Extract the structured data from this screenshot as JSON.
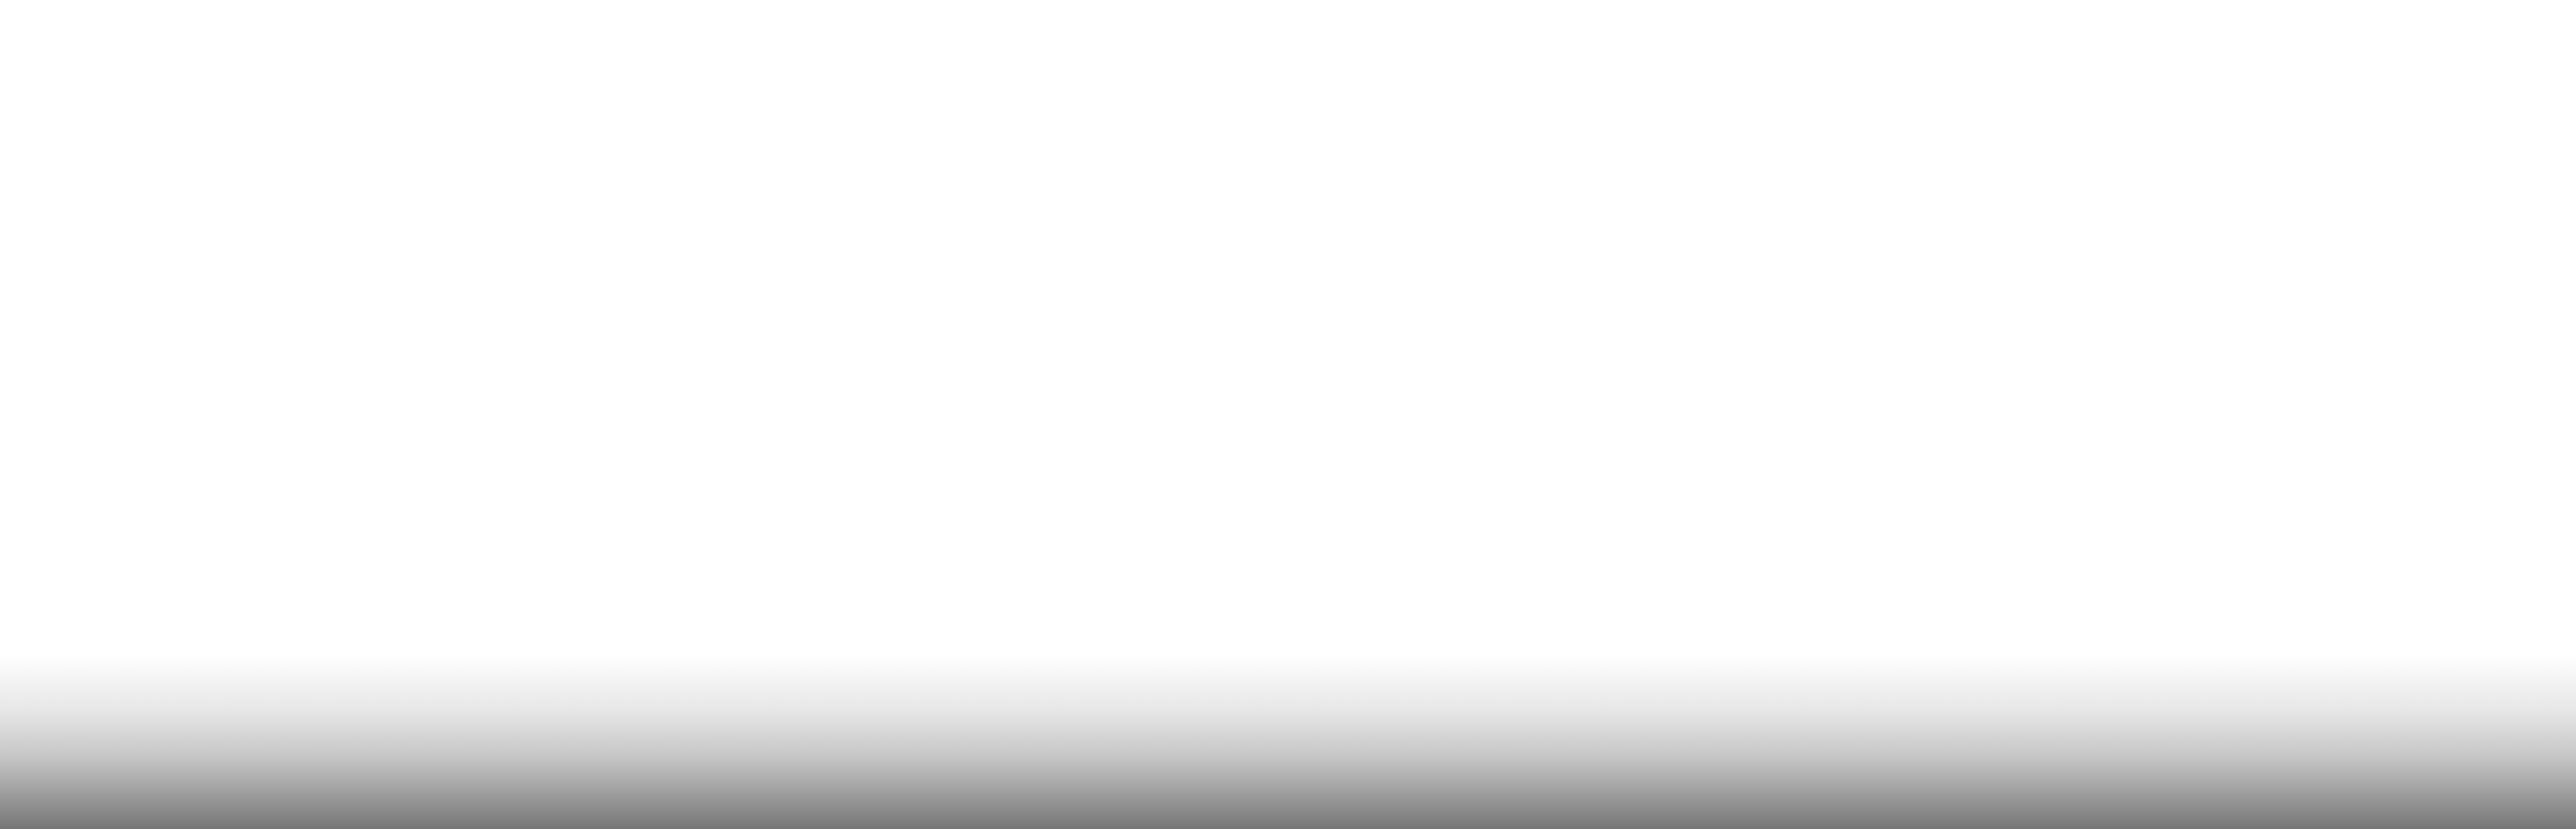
{
  "scene": {
    "description_kind": "decorative-silhouette",
    "colors": {
      "background": "#ffffff",
      "fade_top": "#ffffff",
      "mid_gray": "#c4c4c4",
      "bottom_gray": "#767676"
    }
  }
}
